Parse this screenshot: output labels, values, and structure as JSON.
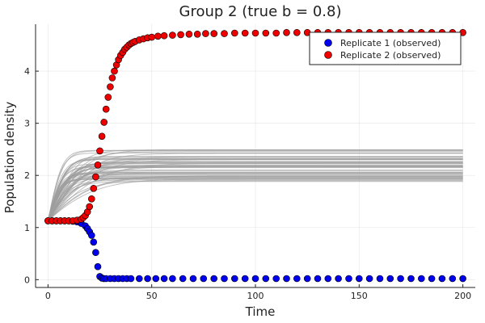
{
  "chart_data": {
    "type": "scatter",
    "title": "Group 2 (true b = 0.8)",
    "xlabel": "Time",
    "ylabel": "Population density",
    "xlim": [
      -6,
      206
    ],
    "ylim": [
      -0.15,
      4.9
    ],
    "xticks": [
      0,
      50,
      100,
      150,
      200
    ],
    "yticks": [
      0,
      1,
      2,
      3,
      4
    ],
    "grid": true,
    "legend_position": "top-right",
    "background_curves": {
      "color": "#9e9e9e",
      "count": 60,
      "start_value": 1.13,
      "plateau_range": [
        1.88,
        2.52
      ],
      "description_visible": false
    },
    "series": [
      {
        "name": "Replicate 1 (observed)",
        "color": "#0000ee",
        "points": [
          [
            0,
            1.13
          ],
          [
            2,
            1.13
          ],
          [
            4,
            1.13
          ],
          [
            6,
            1.13
          ],
          [
            8,
            1.13
          ],
          [
            10,
            1.13
          ],
          [
            12,
            1.12
          ],
          [
            14,
            1.11
          ],
          [
            16,
            1.08
          ],
          [
            18,
            1.03
          ],
          [
            19,
            0.98
          ],
          [
            20,
            0.92
          ],
          [
            21,
            0.85
          ],
          [
            22,
            0.72
          ],
          [
            23,
            0.52
          ],
          [
            24,
            0.25
          ],
          [
            25,
            0.06
          ],
          [
            26,
            0.03
          ],
          [
            27,
            0.02
          ],
          [
            28,
            0.02
          ],
          [
            30,
            0.02
          ],
          [
            32,
            0.02
          ],
          [
            34,
            0.02
          ],
          [
            36,
            0.02
          ],
          [
            38,
            0.02
          ],
          [
            40,
            0.02
          ],
          [
            44,
            0.02
          ],
          [
            48,
            0.02
          ],
          [
            52,
            0.02
          ],
          [
            56,
            0.02
          ],
          [
            60,
            0.02
          ],
          [
            65,
            0.02
          ],
          [
            70,
            0.02
          ],
          [
            75,
            0.02
          ],
          [
            80,
            0.02
          ],
          [
            85,
            0.02
          ],
          [
            90,
            0.02
          ],
          [
            95,
            0.02
          ],
          [
            100,
            0.02
          ],
          [
            105,
            0.02
          ],
          [
            110,
            0.02
          ],
          [
            115,
            0.02
          ],
          [
            120,
            0.02
          ],
          [
            125,
            0.02
          ],
          [
            130,
            0.02
          ],
          [
            135,
            0.02
          ],
          [
            140,
            0.02
          ],
          [
            145,
            0.02
          ],
          [
            150,
            0.02
          ],
          [
            155,
            0.02
          ],
          [
            160,
            0.02
          ],
          [
            165,
            0.02
          ],
          [
            170,
            0.02
          ],
          [
            175,
            0.02
          ],
          [
            180,
            0.02
          ],
          [
            185,
            0.02
          ],
          [
            190,
            0.02
          ],
          [
            195,
            0.02
          ],
          [
            200,
            0.02
          ]
        ]
      },
      {
        "name": "Replicate 2 (observed)",
        "color": "#ee0000",
        "points": [
          [
            0,
            1.13
          ],
          [
            2,
            1.13
          ],
          [
            4,
            1.13
          ],
          [
            6,
            1.13
          ],
          [
            8,
            1.13
          ],
          [
            10,
            1.13
          ],
          [
            12,
            1.13
          ],
          [
            14,
            1.14
          ],
          [
            16,
            1.16
          ],
          [
            17,
            1.19
          ],
          [
            18,
            1.23
          ],
          [
            19,
            1.3
          ],
          [
            20,
            1.4
          ],
          [
            21,
            1.55
          ],
          [
            22,
            1.75
          ],
          [
            23,
            1.97
          ],
          [
            24,
            2.2
          ],
          [
            25,
            2.47
          ],
          [
            26,
            2.75
          ],
          [
            27,
            3.02
          ],
          [
            28,
            3.27
          ],
          [
            29,
            3.5
          ],
          [
            30,
            3.7
          ],
          [
            31,
            3.87
          ],
          [
            32,
            4.0
          ],
          [
            33,
            4.12
          ],
          [
            34,
            4.22
          ],
          [
            35,
            4.3
          ],
          [
            36,
            4.36
          ],
          [
            37,
            4.42
          ],
          [
            38,
            4.46
          ],
          [
            39,
            4.5
          ],
          [
            40,
            4.53
          ],
          [
            41,
            4.55
          ],
          [
            42,
            4.57
          ],
          [
            44,
            4.6
          ],
          [
            46,
            4.62
          ],
          [
            48,
            4.64
          ],
          [
            50,
            4.65
          ],
          [
            53,
            4.67
          ],
          [
            56,
            4.68
          ],
          [
            60,
            4.69
          ],
          [
            64,
            4.7
          ],
          [
            68,
            4.71
          ],
          [
            72,
            4.71
          ],
          [
            76,
            4.72
          ],
          [
            80,
            4.72
          ],
          [
            85,
            4.72
          ],
          [
            90,
            4.73
          ],
          [
            95,
            4.73
          ],
          [
            100,
            4.73
          ],
          [
            105,
            4.73
          ],
          [
            110,
            4.73
          ],
          [
            115,
            4.74
          ],
          [
            120,
            4.74
          ],
          [
            125,
            4.74
          ],
          [
            130,
            4.74
          ],
          [
            135,
            4.74
          ],
          [
            140,
            4.74
          ],
          [
            145,
            4.74
          ],
          [
            150,
            4.74
          ],
          [
            155,
            4.74
          ],
          [
            160,
            4.74
          ],
          [
            165,
            4.74
          ],
          [
            170,
            4.74
          ],
          [
            175,
            4.74
          ],
          [
            180,
            4.74
          ],
          [
            185,
            4.74
          ],
          [
            190,
            4.74
          ],
          [
            195,
            4.74
          ],
          [
            200,
            4.74
          ]
        ]
      }
    ]
  }
}
